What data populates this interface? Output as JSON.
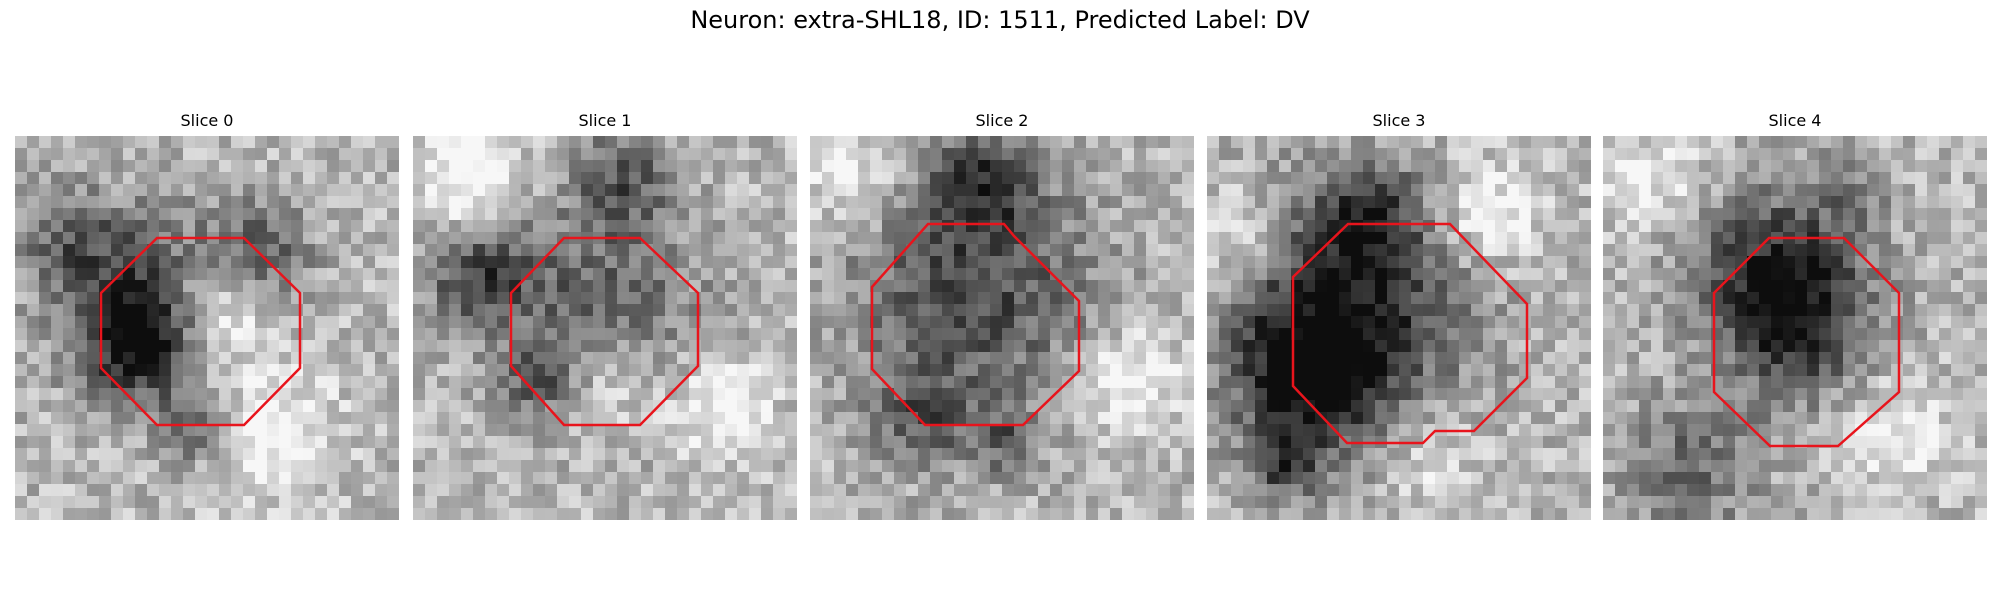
{
  "figure": {
    "title": "Neuron: extra-SHL18, ID: 1511, Predicted Label: DV"
  },
  "slices": [
    {
      "title": "Slice 0"
    },
    {
      "title": "Slice 1"
    },
    {
      "title": "Slice 2"
    },
    {
      "title": "Slice 3"
    },
    {
      "title": "Slice 4"
    }
  ],
  "colors": {
    "outline": "#e8141c"
  }
}
